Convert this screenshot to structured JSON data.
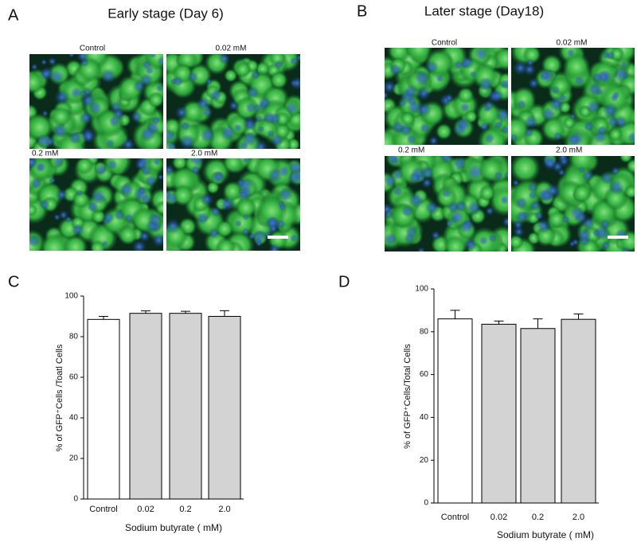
{
  "panels": [
    {
      "label": "A",
      "title": "Early stage (Day 6)",
      "images": [
        "Control",
        "0.02 mM",
        "0.2 mM",
        "2.0 mM"
      ]
    },
    {
      "label": "B",
      "title": "Later stage (Day18)",
      "images": [
        "Control",
        "0.02 mM",
        "0.2 mM",
        "2.0 mM"
      ]
    }
  ],
  "chart_data": [
    {
      "type": "bar",
      "label": "C",
      "categories": [
        "Control",
        "0.02",
        "0.2",
        "2.0"
      ],
      "values": [
        88.5,
        91.5,
        91.5,
        90
      ],
      "errors": [
        1.5,
        1.2,
        1,
        2.8
      ],
      "colors": [
        "#ffffff",
        "#d3d3d3",
        "#d3d3d3",
        "#d3d3d3"
      ],
      "ylim": [
        0,
        100
      ],
      "yticks": [
        0,
        20,
        40,
        60,
        80,
        100
      ],
      "ylabel": "% of GFP⁺Cells /Toatl Cells",
      "xlabel": "Sodium butyrate ( mM)"
    },
    {
      "type": "bar",
      "label": "D",
      "categories": [
        "Control",
        "0.02",
        "0.2",
        "2.0"
      ],
      "values": [
        86,
        83.5,
        81.5,
        85.8
      ],
      "errors": [
        4,
        1.5,
        4.5,
        2.5
      ],
      "colors": [
        "#ffffff",
        "#d3d3d3",
        "#d3d3d3",
        "#d3d3d3"
      ],
      "ylim": [
        0,
        100
      ],
      "yticks": [
        0,
        20,
        40,
        60,
        80,
        100
      ],
      "ylabel": "% of GFP⁺Cells/Total Cells",
      "xlabel": "Sodium butyrate ( mM)"
    }
  ]
}
